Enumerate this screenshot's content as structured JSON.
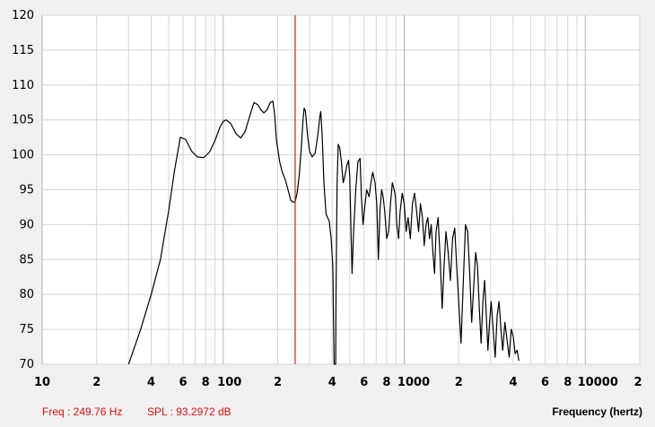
{
  "readout": {
    "freq_text": "Freq : 249.76 Hz",
    "spl_text": "SPL : 93.2972 dB"
  },
  "colors": {
    "background": "#f0f0f0",
    "plot_background": "#ffffff",
    "grid": "#d6d6d6",
    "grid_major": "#b4b4b4",
    "curve": "#000000",
    "cursor": "#cc2222",
    "readout_text": "#e01010"
  },
  "chart_data": {
    "type": "line",
    "xlabel": "Frequency (hertz)",
    "ylabel": "",
    "x_scale": "log",
    "xlim": [
      10,
      20000
    ],
    "ylim": [
      70,
      120
    ],
    "grid": true,
    "y_ticks": [
      70,
      75,
      80,
      85,
      90,
      95,
      100,
      105,
      110,
      115,
      120
    ],
    "x_tick_labels": [
      {
        "x": 10,
        "label": "10"
      },
      {
        "x": 20,
        "label": "2"
      },
      {
        "x": 40,
        "label": "4"
      },
      {
        "x": 60,
        "label": "6"
      },
      {
        "x": 80,
        "label": "8"
      },
      {
        "x": 100,
        "label": "100"
      },
      {
        "x": 200,
        "label": "2"
      },
      {
        "x": 400,
        "label": "4"
      },
      {
        "x": 600,
        "label": "6"
      },
      {
        "x": 800,
        "label": "8"
      },
      {
        "x": 1000,
        "label": "1000"
      },
      {
        "x": 2000,
        "label": "2"
      },
      {
        "x": 4000,
        "label": "4"
      },
      {
        "x": 6000,
        "label": "6"
      },
      {
        "x": 8000,
        "label": "8"
      },
      {
        "x": 10000,
        "label": "10000"
      },
      {
        "x": 20000,
        "label": "2"
      }
    ],
    "cursor_x": 249.76,
    "series": [
      {
        "values": [
          [
            30,
            70
          ],
          [
            35,
            75
          ],
          [
            40,
            80
          ],
          [
            45,
            85
          ],
          [
            50,
            92
          ],
          [
            54,
            98
          ],
          [
            58,
            102.5
          ],
          [
            62,
            102.2
          ],
          [
            67,
            100.5
          ],
          [
            72,
            99.7
          ],
          [
            78,
            99.6
          ],
          [
            84,
            100.4
          ],
          [
            90,
            102
          ],
          [
            96,
            104
          ],
          [
            100,
            104.8
          ],
          [
            104,
            105
          ],
          [
            110,
            104.5
          ],
          [
            118,
            103
          ],
          [
            125,
            102.4
          ],
          [
            132,
            103.3
          ],
          [
            140,
            105.5
          ],
          [
            148,
            107.5
          ],
          [
            155,
            107.2
          ],
          [
            162,
            106.4
          ],
          [
            168,
            106
          ],
          [
            175,
            106.5
          ],
          [
            182,
            107.5
          ],
          [
            188,
            107.7
          ],
          [
            192,
            106
          ],
          [
            197,
            102
          ],
          [
            205,
            99
          ],
          [
            212,
            97.5
          ],
          [
            220,
            96.5
          ],
          [
            228,
            95
          ],
          [
            236,
            93.5
          ],
          [
            244,
            93.2
          ],
          [
            249.76,
            93.3
          ],
          [
            256,
            94.5
          ],
          [
            263,
            97
          ],
          [
            270,
            101
          ],
          [
            276,
            105
          ],
          [
            280,
            106.7
          ],
          [
            285,
            106.2
          ],
          [
            292,
            103
          ],
          [
            300,
            100.5
          ],
          [
            310,
            99.7
          ],
          [
            322,
            100.2
          ],
          [
            334,
            103
          ],
          [
            342,
            105.5
          ],
          [
            346,
            106.2
          ],
          [
            352,
            103
          ],
          [
            360,
            96
          ],
          [
            370,
            91.5
          ],
          [
            385,
            90.5
          ],
          [
            395,
            88
          ],
          [
            403,
            84
          ],
          [
            407,
            76.5
          ],
          [
            410,
            70
          ],
          [
            418,
            70
          ],
          [
            420,
            80
          ],
          [
            426,
            96
          ],
          [
            432,
            101.5
          ],
          [
            440,
            101
          ],
          [
            450,
            99
          ],
          [
            460,
            96
          ],
          [
            470,
            97
          ],
          [
            482,
            98.5
          ],
          [
            492,
            99.2
          ],
          [
            500,
            97
          ],
          [
            508,
            89
          ],
          [
            515,
            83
          ],
          [
            525,
            89
          ],
          [
            540,
            95
          ],
          [
            555,
            99
          ],
          [
            570,
            99.5
          ],
          [
            580,
            94
          ],
          [
            592,
            90
          ],
          [
            605,
            92.5
          ],
          [
            620,
            95
          ],
          [
            640,
            94
          ],
          [
            655,
            96
          ],
          [
            670,
            97.5
          ],
          [
            690,
            96
          ],
          [
            705,
            93
          ],
          [
            720,
            85
          ],
          [
            735,
            92
          ],
          [
            750,
            95
          ],
          [
            765,
            94
          ],
          [
            780,
            92
          ],
          [
            800,
            88
          ],
          [
            820,
            89
          ],
          [
            840,
            93
          ],
          [
            860,
            96
          ],
          [
            880,
            95
          ],
          [
            895,
            94
          ],
          [
            910,
            90
          ],
          [
            930,
            88
          ],
          [
            950,
            92
          ],
          [
            975,
            94.5
          ],
          [
            1000,
            93
          ],
          [
            1025,
            89
          ],
          [
            1050,
            91
          ],
          [
            1080,
            88
          ],
          [
            1110,
            93
          ],
          [
            1140,
            94.5
          ],
          [
            1170,
            92
          ],
          [
            1200,
            89
          ],
          [
            1230,
            93
          ],
          [
            1260,
            91
          ],
          [
            1290,
            87
          ],
          [
            1320,
            90
          ],
          [
            1350,
            91
          ],
          [
            1380,
            88
          ],
          [
            1410,
            90
          ],
          [
            1440,
            86
          ],
          [
            1470,
            83
          ],
          [
            1500,
            89
          ],
          [
            1540,
            91
          ],
          [
            1580,
            85
          ],
          [
            1620,
            78
          ],
          [
            1660,
            84
          ],
          [
            1700,
            89
          ],
          [
            1750,
            86
          ],
          [
            1800,
            82
          ],
          [
            1850,
            88
          ],
          [
            1900,
            89.5
          ],
          [
            1950,
            84
          ],
          [
            2000,
            79
          ],
          [
            2060,
            73
          ],
          [
            2120,
            82
          ],
          [
            2180,
            90
          ],
          [
            2240,
            89
          ],
          [
            2300,
            83
          ],
          [
            2360,
            76
          ],
          [
            2420,
            81
          ],
          [
            2480,
            86
          ],
          [
            2540,
            84
          ],
          [
            2600,
            78
          ],
          [
            2660,
            73
          ],
          [
            2720,
            79
          ],
          [
            2780,
            82
          ],
          [
            2840,
            77
          ],
          [
            2900,
            72
          ],
          [
            2960,
            76
          ],
          [
            3020,
            79
          ],
          [
            3100,
            75
          ],
          [
            3180,
            71
          ],
          [
            3260,
            77
          ],
          [
            3340,
            79
          ],
          [
            3420,
            75
          ],
          [
            3500,
            72
          ],
          [
            3600,
            76
          ],
          [
            3700,
            73.5
          ],
          [
            3800,
            71
          ],
          [
            3900,
            75
          ],
          [
            4000,
            74
          ],
          [
            4100,
            71.5
          ],
          [
            4200,
            72
          ],
          [
            4300,
            70.5
          ]
        ]
      }
    ]
  }
}
